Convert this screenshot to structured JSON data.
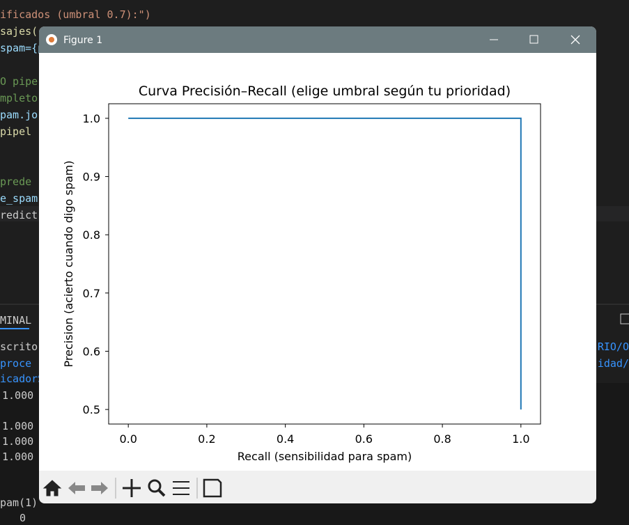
{
  "editor": {
    "lines": [
      "ificados (umbral 0.7):\")",
      "sajes(",
      "spam={p",
      "O pipe",
      "mpleto",
      "pam.jo",
      " pipel",
      " prede",
      "e_spam",
      "redict"
    ]
  },
  "terminal": {
    "tab": "MINAL",
    "lines": [
      "scrito",
      " proce",
      "icadorS",
      "1.000",
      "1.000",
      "1.000",
      "1.000",
      "pam(1)",
      "0"
    ],
    "right_lines": [
      "RIO/O",
      "idad/"
    ]
  },
  "window": {
    "title": "Figure 1"
  },
  "chart_data": {
    "type": "line",
    "title": "Curva Precisión–Recall (elige umbral según tu prioridad)",
    "x_label": "Recall (sensibilidad para spam)",
    "y_label": "Precision (acierto cuando digo spam)",
    "x": [
      0.0,
      1.0,
      1.0
    ],
    "values": [
      1.0,
      1.0,
      0.5
    ],
    "color": "#1f77b4",
    "xlim": [
      -0.05,
      1.05
    ],
    "ylim": [
      0.475,
      1.025
    ],
    "xticks": [
      {
        "value": 0,
        "label": "0.0"
      },
      0.2,
      0.4,
      0.6,
      0.8,
      {
        "value": 1,
        "label": "1.0"
      }
    ],
    "yticks": [
      0.5,
      0.6,
      0.7,
      0.8,
      0.9,
      {
        "value": 1,
        "label": "1.0"
      }
    ],
    "grid": false
  }
}
